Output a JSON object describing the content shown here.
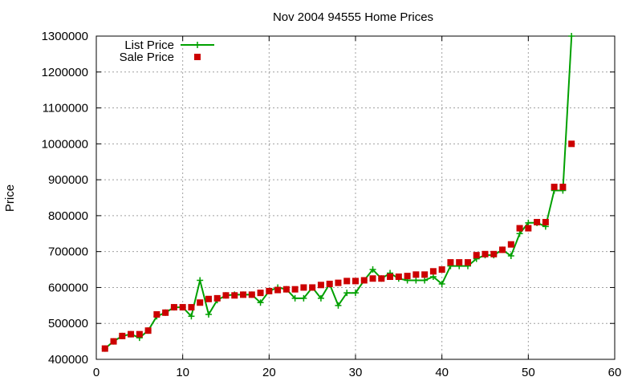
{
  "chart_data": {
    "type": "line",
    "title": "Nov 2004 94555 Home Prices",
    "xlabel": "",
    "ylabel": "Price",
    "xlim": [
      0,
      60
    ],
    "ylim": [
      400000,
      1300000
    ],
    "x_ticks": [
      0,
      10,
      20,
      30,
      40,
      50,
      60
    ],
    "y_ticks": [
      400000,
      500000,
      600000,
      700000,
      800000,
      900000,
      1000000,
      1100000,
      1200000,
      1300000
    ],
    "grid": true,
    "legend_position": "top-left",
    "series": [
      {
        "name": "List Price",
        "style": "line+plus",
        "color": "#00a000",
        "x": [
          1,
          2,
          3,
          4,
          5,
          6,
          7,
          8,
          9,
          10,
          11,
          12,
          13,
          14,
          15,
          16,
          17,
          18,
          19,
          20,
          21,
          22,
          23,
          24,
          25,
          26,
          27,
          28,
          29,
          30,
          31,
          32,
          33,
          34,
          35,
          36,
          37,
          38,
          39,
          40,
          41,
          42,
          43,
          44,
          45,
          46,
          47,
          48,
          49,
          50,
          51,
          52,
          53,
          54,
          55
        ],
        "y": [
          430000,
          450000,
          465000,
          470000,
          460000,
          480000,
          520000,
          530000,
          545000,
          545000,
          520000,
          620000,
          525000,
          565000,
          578000,
          580000,
          580000,
          580000,
          558000,
          590000,
          600000,
          595000,
          570000,
          570000,
          600000,
          570000,
          610000,
          550000,
          585000,
          585000,
          620000,
          650000,
          625000,
          640000,
          625000,
          620000,
          620000,
          620000,
          630000,
          610000,
          660000,
          660000,
          660000,
          680000,
          690000,
          690000,
          705000,
          688000,
          750000,
          780000,
          780000,
          770000,
          870000,
          870000,
          1300000
        ]
      },
      {
        "name": "Sale Price",
        "style": "squares",
        "color": "#cc0000",
        "x": [
          1,
          2,
          3,
          4,
          5,
          6,
          7,
          8,
          9,
          10,
          11,
          12,
          13,
          14,
          15,
          16,
          17,
          18,
          19,
          20,
          21,
          22,
          23,
          24,
          25,
          26,
          27,
          28,
          29,
          30,
          31,
          32,
          33,
          34,
          35,
          36,
          37,
          38,
          39,
          40,
          41,
          42,
          43,
          44,
          45,
          46,
          47,
          48,
          49,
          50,
          51,
          52,
          53,
          54,
          55
        ],
        "y": [
          430000,
          450000,
          465000,
          470000,
          470000,
          480000,
          525000,
          530000,
          545000,
          545000,
          545000,
          558000,
          568000,
          570000,
          578000,
          578000,
          580000,
          580000,
          585000,
          590000,
          593000,
          595000,
          595000,
          600000,
          600000,
          607000,
          610000,
          613000,
          618000,
          618000,
          620000,
          625000,
          625000,
          630000,
          630000,
          632000,
          636000,
          636000,
          645000,
          650000,
          670000,
          670000,
          670000,
          690000,
          693000,
          693000,
          705000,
          720000,
          765000,
          765000,
          782000,
          782000,
          880000,
          880000,
          1000000
        ]
      }
    ]
  }
}
